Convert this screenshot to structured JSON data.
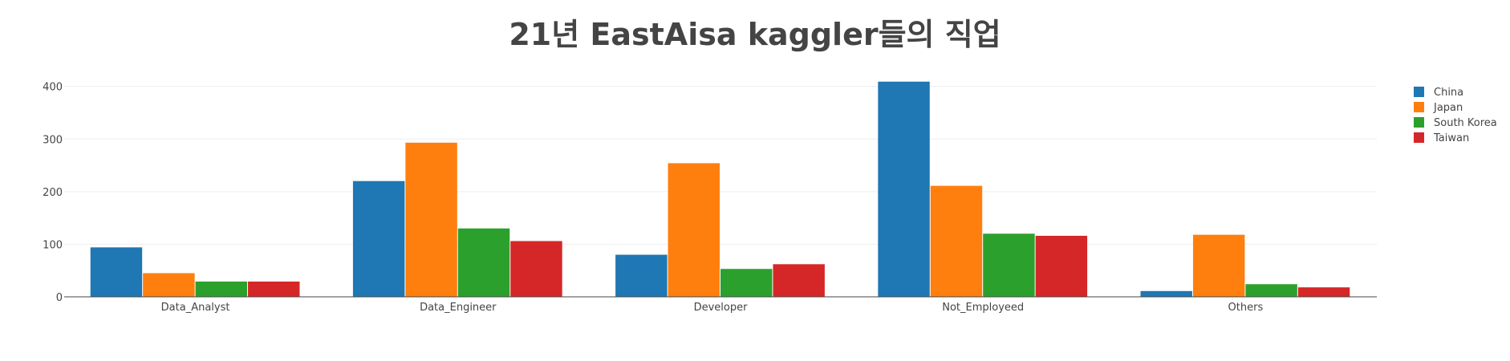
{
  "chart_data": {
    "type": "bar",
    "title": "21년 EastAisa kaggler들의 직업",
    "categories": [
      "Data_Analyst",
      "Data_Engineer",
      "Developer",
      "Not_Employeed",
      "Others"
    ],
    "series": [
      {
        "name": "China",
        "color": "#1f77b4",
        "values": [
          94,
          220,
          80,
          409,
          11
        ]
      },
      {
        "name": "Japan",
        "color": "#ff7f0e",
        "values": [
          45,
          293,
          254,
          211,
          118
        ]
      },
      {
        "name": "South Korea",
        "color": "#2ca02c",
        "values": [
          29,
          130,
          53,
          120,
          24
        ]
      },
      {
        "name": "Taiwan",
        "color": "#d62728",
        "values": [
          29,
          106,
          62,
          116,
          18
        ]
      }
    ],
    "ylim": [
      0,
      430
    ],
    "yticks": [
      0,
      100,
      200,
      300,
      400
    ],
    "grid": true,
    "legend_position": "top-right"
  }
}
